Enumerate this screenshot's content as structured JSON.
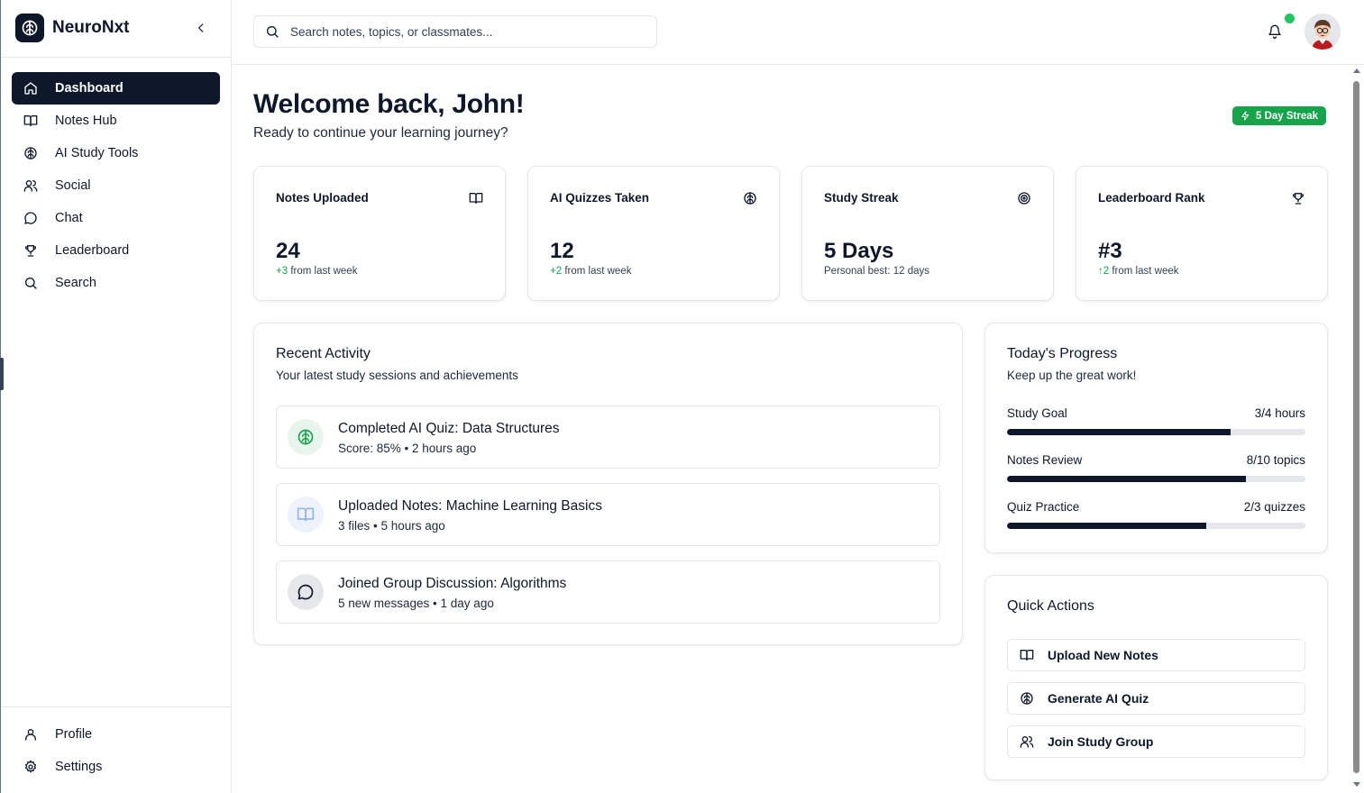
{
  "app": {
    "name": "NeuroNxt"
  },
  "sidebar": {
    "items": [
      {
        "label": "Dashboard",
        "icon": "home-icon",
        "active": true
      },
      {
        "label": "Notes Hub",
        "icon": "book-open-icon"
      },
      {
        "label": "AI Study Tools",
        "icon": "brain-icon"
      },
      {
        "label": "Social",
        "icon": "users-icon"
      },
      {
        "label": "Chat",
        "icon": "message-circle-icon"
      },
      {
        "label": "Leaderboard",
        "icon": "trophy-icon"
      },
      {
        "label": "Search",
        "icon": "search-icon"
      }
    ],
    "bottom_items": [
      {
        "label": "Profile",
        "icon": "user-icon"
      },
      {
        "label": "Settings",
        "icon": "gear-icon"
      }
    ]
  },
  "header": {
    "search_placeholder": "Search notes, topics, or classmates...",
    "notification_dot_color": "#22c55e"
  },
  "main": {
    "welcome": "Welcome back, John!",
    "subtitle": "Ready to continue your learning journey?",
    "streak_badge": "5 Day Streak",
    "stats": [
      {
        "title": "Notes Uploaded",
        "icon": "book-open-icon",
        "value": "24",
        "delta": "+3",
        "note": " from last week"
      },
      {
        "title": "AI Quizzes Taken",
        "icon": "brain-icon",
        "value": "12",
        "delta": "+2",
        "note": " from last week"
      },
      {
        "title": "Study Streak",
        "icon": "target-icon",
        "value": "5 Days",
        "delta": "",
        "note": "Personal best: 12 days"
      },
      {
        "title": "Leaderboard Rank",
        "icon": "trophy-icon",
        "value": "#3",
        "delta": "↑2",
        "note": " from last week"
      }
    ],
    "recent_activity": {
      "title": "Recent Activity",
      "description": "Your latest study sessions and achievements",
      "items": [
        {
          "title": "Completed AI Quiz: Data Structures",
          "meta": "Score: 85% • 2 hours ago",
          "icon": "brain-icon"
        },
        {
          "title": "Uploaded Notes: Machine Learning Basics",
          "meta": "3 files • 5 hours ago",
          "icon": "book-open-icon"
        },
        {
          "title": "Joined Group Discussion: Algorithms",
          "meta": "5 new messages • 1 day ago",
          "icon": "message-circle-icon"
        }
      ]
    },
    "progress": {
      "title": "Today's Progress",
      "description": "Keep up the great work!",
      "rows": [
        {
          "label": "Study Goal",
          "value": "3/4 hours",
          "fraction": 0.75
        },
        {
          "label": "Notes Review",
          "value": "8/10 topics",
          "fraction": 0.8
        },
        {
          "label": "Quiz Practice",
          "value": "2/3 quizzes",
          "fraction": 0.667
        }
      ]
    },
    "quick_actions": {
      "title": "Quick Actions",
      "items": [
        {
          "label": "Upload New Notes",
          "icon": "book-open-icon"
        },
        {
          "label": "Generate AI Quiz",
          "icon": "brain-icon"
        },
        {
          "label": "Join Study Group",
          "icon": "users-icon"
        }
      ]
    }
  },
  "colors": {
    "primary": "#0f172a",
    "success": "#16a34a",
    "border": "#e5e7eb"
  }
}
